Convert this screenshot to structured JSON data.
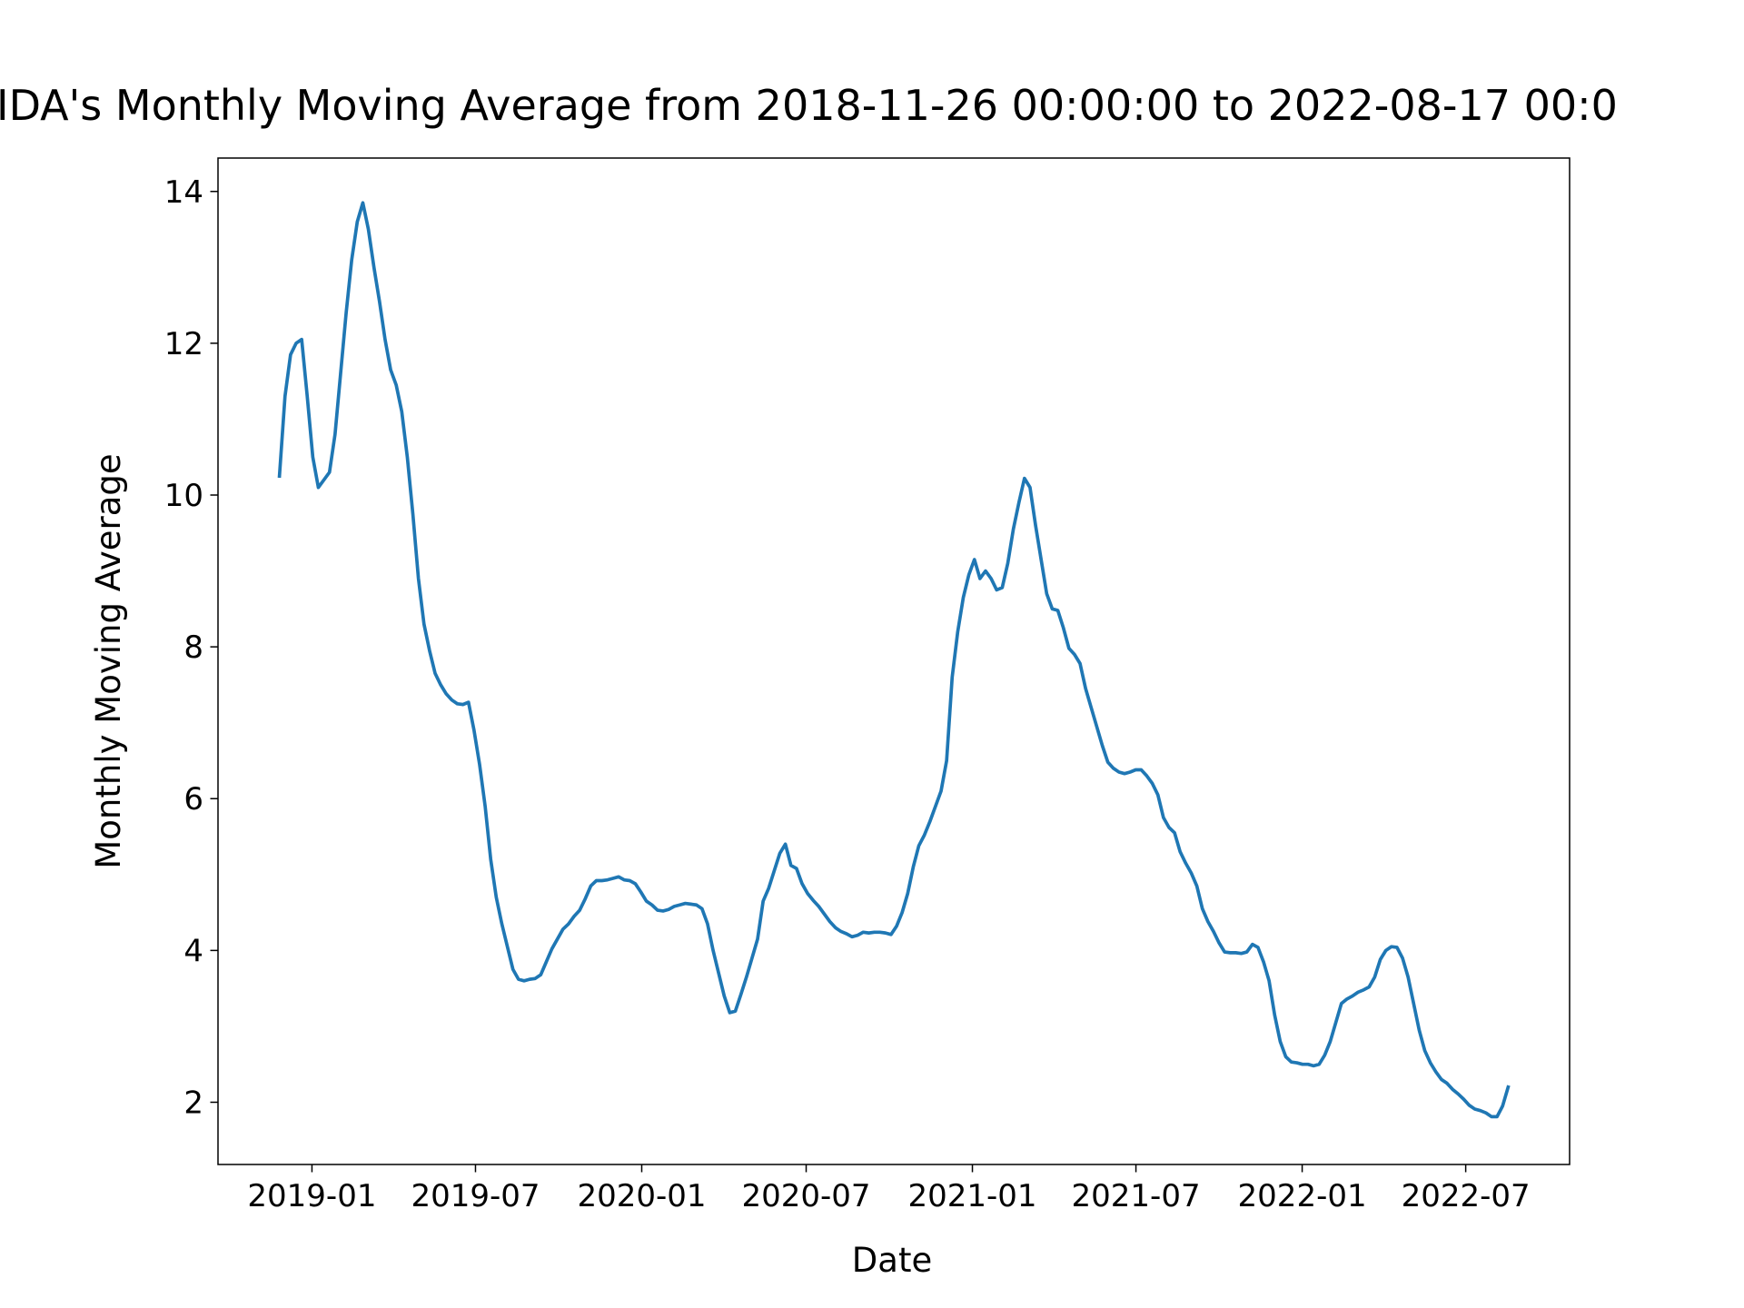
{
  "chart_data": {
    "type": "line",
    "title": "IDA's Monthly Moving Average from 2018-11-26 00:00:00 to 2022-08-17 00:0",
    "xlabel": "Date",
    "ylabel": "Monthly Moving Average",
    "x_start": "2018-11-26",
    "x_end": "2022-08-17",
    "xlim": [
      "2018-09-19",
      "2022-10-24"
    ],
    "xticks": [
      {
        "value": "2019-01-01",
        "label": "2019-01"
      },
      {
        "value": "2019-07-01",
        "label": "2019-07"
      },
      {
        "value": "2020-01-01",
        "label": "2020-01"
      },
      {
        "value": "2020-07-01",
        "label": "2020-07"
      },
      {
        "value": "2021-01-01",
        "label": "2021-01"
      },
      {
        "value": "2021-07-01",
        "label": "2021-07"
      },
      {
        "value": "2022-01-01",
        "label": "2022-01"
      },
      {
        "value": "2022-07-01",
        "label": "2022-07"
      }
    ],
    "ylim": [
      1.18,
      14.44
    ],
    "yticks": [
      2,
      4,
      6,
      8,
      10,
      12,
      14
    ],
    "series": [
      {
        "name": "Monthly Moving Average",
        "color": "#1f77b4",
        "values": [
          10.25,
          11.3,
          11.85,
          12.0,
          12.05,
          11.3,
          10.5,
          10.1,
          10.2,
          10.3,
          10.8,
          11.6,
          12.4,
          13.1,
          13.6,
          13.85,
          13.5,
          13.0,
          12.55,
          12.05,
          11.65,
          11.45,
          11.1,
          10.5,
          9.75,
          8.9,
          8.3,
          7.95,
          7.65,
          7.5,
          7.38,
          7.3,
          7.25,
          7.24,
          7.27,
          6.9,
          6.45,
          5.9,
          5.2,
          4.7,
          4.35,
          4.05,
          3.75,
          3.62,
          3.6,
          3.62,
          3.63,
          3.68,
          3.85,
          4.02,
          4.15,
          4.28,
          4.35,
          4.45,
          4.53,
          4.68,
          4.85,
          4.92,
          4.92,
          4.93,
          4.95,
          4.97,
          4.93,
          4.92,
          4.88,
          4.77,
          4.65,
          4.6,
          4.53,
          4.52,
          4.54,
          4.58,
          4.6,
          4.62,
          4.61,
          4.6,
          4.55,
          4.35,
          4.0,
          3.7,
          3.4,
          3.18,
          3.2,
          3.42,
          3.65,
          3.9,
          4.15,
          4.65,
          4.82,
          5.05,
          5.28,
          5.4,
          5.12,
          5.08,
          4.88,
          4.75,
          4.66,
          4.58,
          4.48,
          4.38,
          4.3,
          4.25,
          4.22,
          4.18,
          4.2,
          4.24,
          4.23,
          4.24,
          4.24,
          4.23,
          4.21,
          4.32,
          4.5,
          4.75,
          5.1,
          5.38,
          5.52,
          5.7,
          5.9,
          6.1,
          6.5,
          7.6,
          8.2,
          8.65,
          8.95,
          9.15,
          8.9,
          9.0,
          8.9,
          8.75,
          8.78,
          9.1,
          9.55,
          9.9,
          10.22,
          10.1,
          9.6,
          9.15,
          8.7,
          8.5,
          8.48,
          8.25,
          7.98,
          7.9,
          7.78,
          7.45,
          7.2,
          6.95,
          6.7,
          6.48,
          6.4,
          6.35,
          6.33,
          6.35,
          6.38,
          6.38,
          6.3,
          6.2,
          6.05,
          5.75,
          5.62,
          5.55,
          5.3,
          5.15,
          5.02,
          4.85,
          4.55,
          4.38,
          4.25,
          4.1,
          3.98,
          3.97,
          3.97,
          3.96,
          3.98,
          4.08,
          4.04,
          3.85,
          3.6,
          3.15,
          2.8,
          2.6,
          2.53,
          2.52,
          2.5,
          2.5,
          2.48,
          2.5,
          2.62,
          2.8,
          3.05,
          3.3,
          3.36,
          3.4,
          3.45,
          3.48,
          3.52,
          3.65,
          3.88,
          4.0,
          4.05,
          4.04,
          3.9,
          3.65,
          3.3,
          2.95,
          2.68,
          2.52,
          2.4,
          2.3,
          2.25,
          2.17,
          2.11,
          2.04,
          1.96,
          1.91,
          1.89,
          1.86,
          1.81,
          1.81,
          1.95,
          2.2
        ]
      }
    ]
  }
}
